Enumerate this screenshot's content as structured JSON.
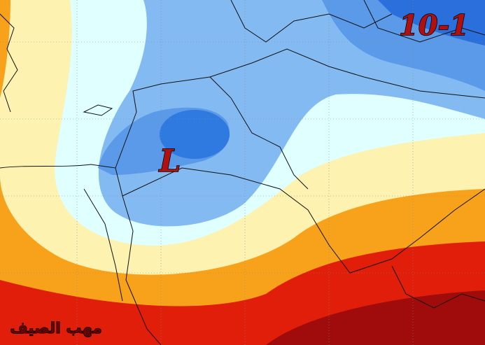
{
  "map": {
    "date_label": "10-1",
    "pressure_label": "L",
    "watermark": "مهب الصيف"
  }
}
